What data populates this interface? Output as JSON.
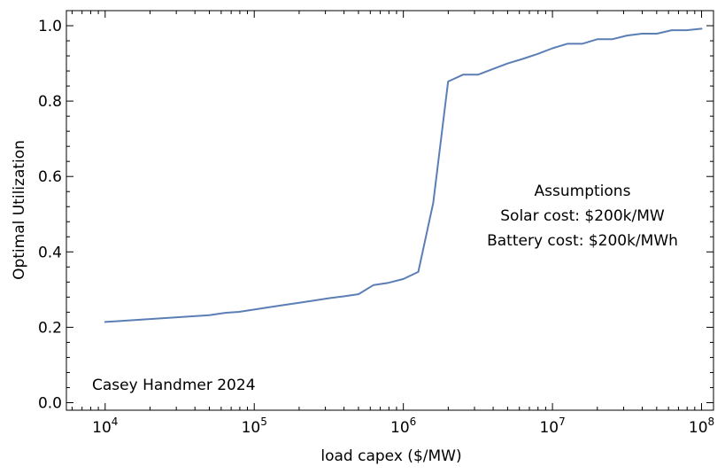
{
  "chart_data": {
    "type": "line",
    "title": "",
    "xlabel": "load capex ($/MW)",
    "ylabel": "Optimal Utilization",
    "xscale": "log",
    "xlim_log10": [
      3.74,
      8.08
    ],
    "ylim": [
      -0.02,
      1.04
    ],
    "x_ticks_log10": [
      4,
      5,
      6,
      7,
      8
    ],
    "x_tick_labels": [
      {
        "base": "10",
        "exp": "4"
      },
      {
        "base": "10",
        "exp": "5"
      },
      {
        "base": "10",
        "exp": "6"
      },
      {
        "base": "10",
        "exp": "7"
      },
      {
        "base": "10",
        "exp": "8"
      }
    ],
    "y_ticks": [
      0.0,
      0.2,
      0.4,
      0.6,
      0.8,
      1.0
    ],
    "y_tick_labels": [
      "0.0",
      "0.2",
      "0.4",
      "0.6",
      "0.8",
      "1.0"
    ],
    "grid": false,
    "series": [
      {
        "name": "Optimal Utilization",
        "color": "#5b7fb5",
        "x": [
          10000,
          50000,
          63000,
          79000,
          100000,
          126000,
          158000,
          200000,
          251000,
          316000,
          398000,
          501000,
          631000,
          794000,
          1000000,
          1259000,
          1585000,
          1995000,
          2512000,
          3162000,
          3981000,
          5012000,
          6310000,
          7943000,
          10000000,
          12589000,
          15849000,
          19953000,
          25119000,
          31623000,
          39811000,
          50119000,
          63096000,
          79433000,
          100000000
        ],
        "y": [
          0.214,
          0.232,
          0.238,
          0.241,
          0.247,
          0.253,
          0.259,
          0.265,
          0.271,
          0.277,
          0.282,
          0.288,
          0.312,
          0.318,
          0.328,
          0.347,
          0.53,
          0.852,
          0.87,
          0.87,
          0.885,
          0.9,
          0.912,
          0.925,
          0.94,
          0.952,
          0.952,
          0.964,
          0.964,
          0.974,
          0.979,
          0.979,
          0.988,
          0.988,
          0.992
        ]
      }
    ],
    "annotations": {
      "assumptions_title": "Assumptions",
      "solar_cost": "Solar cost: $200k/MW",
      "battery_cost": "Battery cost: $200k/MWh",
      "credit": "Casey Handmer 2024"
    }
  }
}
